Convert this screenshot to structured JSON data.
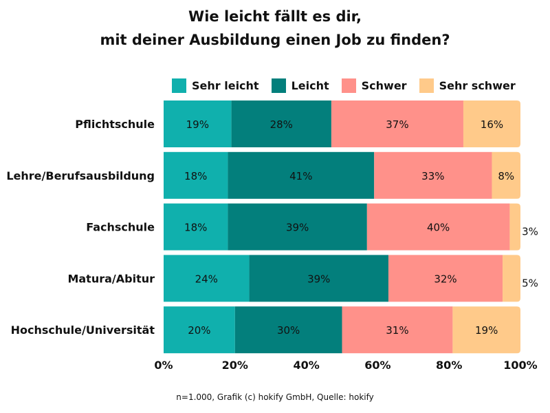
{
  "chart_data": {
    "type": "bar",
    "stacked": true,
    "orientation": "horizontal",
    "title": [
      "Wie leicht fällt es dir,",
      "mit deiner Ausbildung einen Job zu finden?"
    ],
    "categories": [
      "Pflichtschule",
      "Lehre/Berufsausbildung",
      "Fachschule",
      "Matura/Abitur",
      "Hochschule/Universität"
    ],
    "series": [
      {
        "name": "Sehr leicht",
        "color": "#10b0ad",
        "values": [
          19,
          18,
          18,
          24,
          20
        ]
      },
      {
        "name": "Leicht",
        "color": "#037f7c",
        "values": [
          28,
          41,
          39,
          39,
          30
        ]
      },
      {
        "name": "Schwer",
        "color": "#ff918a",
        "values": [
          37,
          33,
          40,
          32,
          31
        ]
      },
      {
        "name": "Sehr schwer",
        "color": "#ffca8a",
        "values": [
          16,
          8,
          3,
          5,
          19
        ]
      }
    ],
    "xlim": [
      0,
      100
    ],
    "xticks": [
      "0%",
      "20%",
      "40%",
      "60%",
      "80%",
      "100%"
    ],
    "legend": "top"
  },
  "source": "n=1.000, Grafik (c) hokify GmbH, Quelle: hokify"
}
